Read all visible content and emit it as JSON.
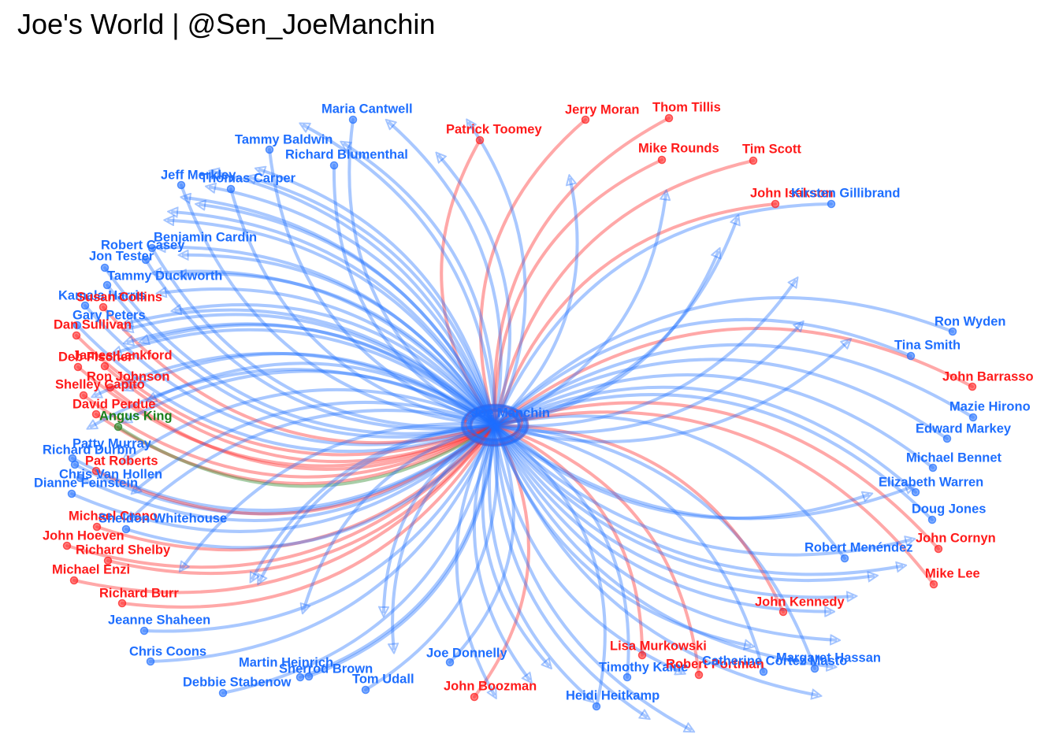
{
  "title": "Joe's World | @Sen_JoeManchin",
  "colors": {
    "Democrat": "#1e6eff",
    "Republican": "#ff1a1a",
    "Independent": "#1a7f1a"
  },
  "center": {
    "name": "Joe Manchin",
    "party": "Democrat"
  },
  "nodes": [
    {
      "name": "Maria Cantwell",
      "party": "Democrat"
    },
    {
      "name": "Patrick Toomey",
      "party": "Republican"
    },
    {
      "name": "Jerry Moran",
      "party": "Republican"
    },
    {
      "name": "Thom Tillis",
      "party": "Republican"
    },
    {
      "name": "Mike Rounds",
      "party": "Republican"
    },
    {
      "name": "Tim Scott",
      "party": "Republican"
    },
    {
      "name": "Tammy Baldwin",
      "party": "Democrat"
    },
    {
      "name": "Richard Blumenthal",
      "party": "Democrat"
    },
    {
      "name": "Jeff Merkley",
      "party": "Democrat"
    },
    {
      "name": "Thomas Carper",
      "party": "Democrat"
    },
    {
      "name": "John Hoeven",
      "party": "Republican"
    },
    {
      "name": "John Isakson",
      "party": "Republican"
    },
    {
      "name": "Kirsten Gillibrand",
      "party": "Democrat"
    },
    {
      "name": "Benjamin Cardin",
      "party": "Democrat"
    },
    {
      "name": "Robert Casey",
      "party": "Democrat"
    },
    {
      "name": "Jon Tester",
      "party": "Democrat"
    },
    {
      "name": "Tammy Duckworth",
      "party": "Democrat"
    },
    {
      "name": "Kamala Harris",
      "party": "Democrat"
    },
    {
      "name": "Susan Collins",
      "party": "Republican"
    },
    {
      "name": "Gary Peters",
      "party": "Democrat"
    },
    {
      "name": "Dan Sullivan",
      "party": "Republican"
    },
    {
      "name": "James Lankford",
      "party": "Republican"
    },
    {
      "name": "Deb Fischer",
      "party": "Republican"
    },
    {
      "name": "Ron Johnson",
      "party": "Republican"
    },
    {
      "name": "Shelley Capito",
      "party": "Republican"
    },
    {
      "name": "David Perdue",
      "party": "Republican"
    },
    {
      "name": "Angus King",
      "party": "Independent"
    },
    {
      "name": "Patty Murray",
      "party": "Democrat"
    },
    {
      "name": "Richard Durbin",
      "party": "Democrat"
    },
    {
      "name": "Pat Roberts",
      "party": "Republican"
    },
    {
      "name": "Chris Van Hollen",
      "party": "Democrat"
    },
    {
      "name": "Dianne Feinstein",
      "party": "Democrat"
    },
    {
      "name": "Michael Crapo",
      "party": "Republican"
    },
    {
      "name": "Sheldon Whitehouse",
      "party": "Democrat"
    },
    {
      "name": "Richard Shelby",
      "party": "Republican"
    },
    {
      "name": "Michael Enzi",
      "party": "Republican"
    },
    {
      "name": "Richard Burr",
      "party": "Republican"
    },
    {
      "name": "Jeanne Shaheen",
      "party": "Democrat"
    },
    {
      "name": "Chris Coons",
      "party": "Democrat"
    },
    {
      "name": "Martin Heinrich",
      "party": "Democrat"
    },
    {
      "name": "Sherrod Brown",
      "party": "Democrat"
    },
    {
      "name": "Debbie Stabenow",
      "party": "Democrat"
    },
    {
      "name": "Tom Udall",
      "party": "Democrat"
    },
    {
      "name": "Joe Donnelly",
      "party": "Democrat"
    },
    {
      "name": "John Boozman",
      "party": "Republican"
    },
    {
      "name": "Heidi Heitkamp",
      "party": "Democrat"
    },
    {
      "name": "Lisa Murkowski",
      "party": "Republican"
    },
    {
      "name": "Timothy Kaine",
      "party": "Democrat"
    },
    {
      "name": "Robert Portman",
      "party": "Republican"
    },
    {
      "name": "Catherine Cortez Masto",
      "party": "Democrat"
    },
    {
      "name": "Margaret Hassan",
      "party": "Democrat"
    },
    {
      "name": "John Kennedy",
      "party": "Republican"
    },
    {
      "name": "Robert Menéndez",
      "party": "Democrat"
    },
    {
      "name": "Mike Lee",
      "party": "Republican"
    },
    {
      "name": "John Cornyn",
      "party": "Republican"
    },
    {
      "name": "Doug Jones",
      "party": "Democrat"
    },
    {
      "name": "Elizabeth Warren",
      "party": "Democrat"
    },
    {
      "name": "Michael Bennet",
      "party": "Democrat"
    },
    {
      "name": "Edward Markey",
      "party": "Democrat"
    },
    {
      "name": "Mazie Hirono",
      "party": "Democrat"
    },
    {
      "name": "John Barrasso",
      "party": "Republican"
    },
    {
      "name": "Tina Smith",
      "party": "Democrat"
    },
    {
      "name": "Ron Wyden",
      "party": "Democrat"
    }
  ]
}
